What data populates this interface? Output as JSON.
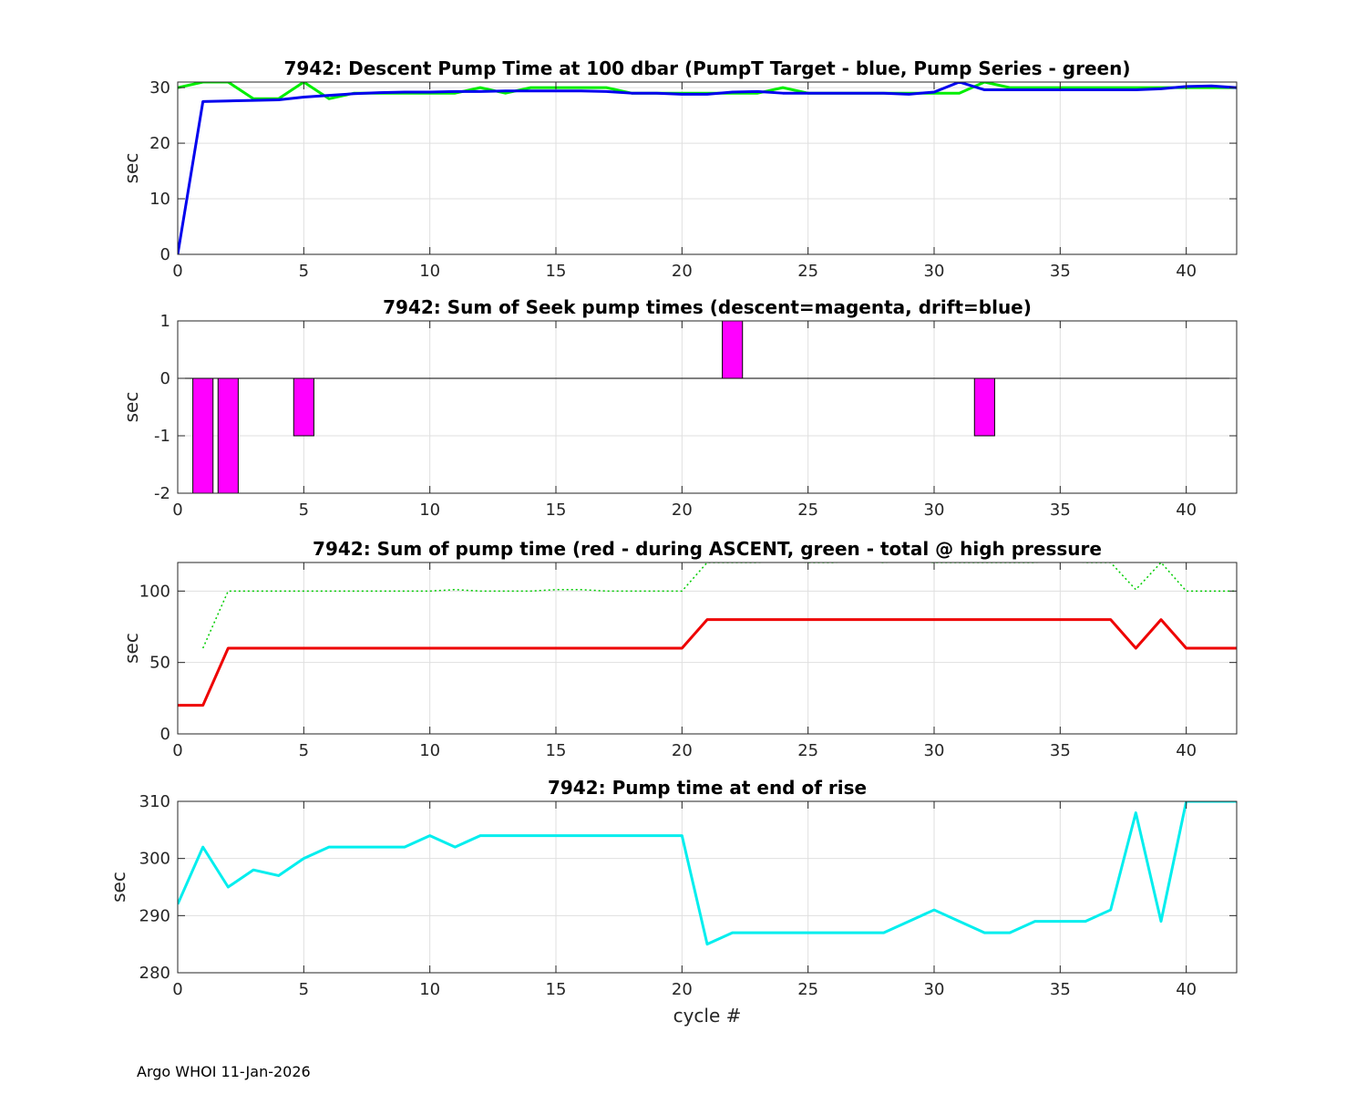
{
  "footer": "Argo WHOI 11-Jan-2026",
  "chart_data": [
    {
      "type": "line",
      "title": "7942: Descent Pump Time at 100 dbar (PumpT Target - blue, Pump Series - green)",
      "xlabel": "",
      "ylabel": "sec",
      "xlim": [
        0,
        42
      ],
      "ylim": [
        0,
        31
      ],
      "xticks": [
        0,
        5,
        10,
        15,
        20,
        25,
        30,
        35,
        40
      ],
      "yticks": [
        0,
        10,
        20,
        30
      ],
      "grid": true,
      "series": [
        {
          "color": "#00ee00",
          "width": 3,
          "dash": "",
          "x": [
            0,
            1,
            2,
            3,
            4,
            5,
            6,
            7,
            8,
            9,
            10,
            11,
            12,
            13,
            14,
            15,
            16,
            17,
            18,
            19,
            20,
            21,
            22,
            23,
            24,
            25,
            26,
            27,
            28,
            29,
            30,
            31,
            32,
            33,
            34,
            35,
            36,
            37,
            38,
            39,
            40,
            41,
            42
          ],
          "y": [
            30,
            31,
            31,
            28,
            28,
            31,
            28,
            29,
            29,
            29,
            29,
            29,
            30,
            29,
            30,
            30,
            30,
            30,
            29,
            29,
            29,
            29,
            29,
            29,
            30,
            29,
            29,
            29,
            29,
            29,
            29,
            29,
            31,
            30,
            30,
            30,
            30,
            30,
            30,
            30,
            30,
            30,
            30
          ]
        },
        {
          "color": "#0000ee",
          "width": 3,
          "dash": "",
          "x": [
            0,
            1,
            2,
            3,
            4,
            5,
            6,
            7,
            8,
            9,
            10,
            11,
            12,
            13,
            14,
            15,
            16,
            17,
            18,
            19,
            20,
            21,
            22,
            23,
            24,
            25,
            26,
            27,
            28,
            29,
            30,
            31,
            32,
            33,
            34,
            35,
            36,
            37,
            38,
            39,
            40,
            41,
            42
          ],
          "y": [
            0,
            27.5,
            27.6,
            27.7,
            27.8,
            28.3,
            28.6,
            28.9,
            29.1,
            29.2,
            29.2,
            29.3,
            29.3,
            29.4,
            29.4,
            29.4,
            29.4,
            29.3,
            29.0,
            29.0,
            28.8,
            28.8,
            29.2,
            29.3,
            29.0,
            29.0,
            29.0,
            29.0,
            29.0,
            28.8,
            29.2,
            31.0,
            29.6,
            29.6,
            29.6,
            29.6,
            29.6,
            29.6,
            29.6,
            29.8,
            30.2,
            30.3,
            30.0
          ]
        }
      ]
    },
    {
      "type": "bar",
      "title": "7942: Sum of Seek pump times (descent=magenta, drift=blue)",
      "xlabel": "",
      "ylabel": "sec",
      "xlim": [
        0,
        42
      ],
      "ylim": [
        -2,
        1
      ],
      "xticks": [
        0,
        5,
        10,
        15,
        20,
        25,
        30,
        35,
        40
      ],
      "yticks": [
        -2,
        -1,
        0,
        1
      ],
      "grid": true,
      "zero_line": true,
      "bars": [
        {
          "x": 1,
          "value": -2
        },
        {
          "x": 2,
          "value": -2
        },
        {
          "x": 5,
          "value": -1
        },
        {
          "x": 22,
          "value": 1
        },
        {
          "x": 32,
          "value": -1
        }
      ],
      "bar_width": 0.8,
      "bar_color": "#ff00ff"
    },
    {
      "type": "line",
      "title": "7942: Sum of pump time (red - during ASCENT, green - total @ high pressure",
      "xlabel": "",
      "ylabel": "sec",
      "xlim": [
        0,
        42
      ],
      "ylim": [
        0,
        120
      ],
      "xticks": [
        0,
        5,
        10,
        15,
        20,
        25,
        30,
        35,
        40
      ],
      "yticks": [
        0,
        50,
        100
      ],
      "grid": true,
      "series": [
        {
          "color": "#00cc00",
          "width": 1.5,
          "dash": "2,3",
          "x": [
            1,
            2,
            3,
            4,
            5,
            6,
            7,
            8,
            9,
            10,
            11,
            12,
            13,
            14,
            15,
            16,
            17,
            18,
            19,
            20,
            21,
            22,
            23,
            24,
            25,
            26,
            27,
            28,
            29,
            30,
            31,
            32,
            33,
            34,
            35,
            36,
            37,
            38,
            39,
            40,
            41,
            42
          ],
          "y": [
            60,
            100,
            100,
            100,
            100,
            100,
            100,
            100,
            100,
            100,
            101,
            100,
            100,
            100,
            101,
            101,
            100,
            100,
            100,
            100,
            120,
            120,
            120,
            121,
            120,
            120,
            121,
            120,
            121,
            120,
            120,
            120,
            120,
            120,
            121,
            120,
            120,
            101,
            120,
            100,
            100,
            100
          ]
        },
        {
          "color": "#ee0000",
          "width": 3,
          "dash": "",
          "x": [
            0,
            1,
            2,
            3,
            4,
            5,
            6,
            7,
            8,
            9,
            10,
            11,
            12,
            13,
            14,
            15,
            16,
            17,
            18,
            19,
            20,
            21,
            22,
            23,
            24,
            25,
            26,
            27,
            28,
            29,
            30,
            31,
            32,
            33,
            34,
            35,
            36,
            37,
            38,
            39,
            40,
            41,
            42
          ],
          "y": [
            20,
            20,
            60,
            60,
            60,
            60,
            60,
            60,
            60,
            60,
            60,
            60,
            60,
            60,
            60,
            60,
            60,
            60,
            60,
            60,
            60,
            80,
            80,
            80,
            80,
            80,
            80,
            80,
            80,
            80,
            80,
            80,
            80,
            80,
            80,
            80,
            80,
            80,
            60,
            80,
            60,
            60,
            60
          ]
        }
      ]
    },
    {
      "type": "line",
      "title": "7942: Pump time at end of rise",
      "xlabel": "cycle #",
      "ylabel": "sec",
      "xlim": [
        0,
        42
      ],
      "ylim": [
        280,
        310
      ],
      "xticks": [
        0,
        5,
        10,
        15,
        20,
        25,
        30,
        35,
        40
      ],
      "yticks": [
        280,
        290,
        300,
        310
      ],
      "grid": true,
      "series": [
        {
          "color": "#00eeee",
          "width": 3,
          "dash": "",
          "x": [
            0,
            1,
            2,
            3,
            4,
            5,
            6,
            7,
            8,
            9,
            10,
            11,
            12,
            13,
            14,
            15,
            16,
            17,
            18,
            19,
            20,
            21,
            22,
            23,
            24,
            25,
            26,
            27,
            28,
            29,
            30,
            31,
            32,
            33,
            34,
            35,
            36,
            37,
            38,
            39,
            40,
            41,
            42
          ],
          "y": [
            292,
            302,
            295,
            298,
            297,
            300,
            302,
            302,
            302,
            302,
            304,
            302,
            304,
            304,
            304,
            304,
            304,
            304,
            304,
            304,
            304,
            285,
            287,
            287,
            287,
            287,
            287,
            287,
            287,
            289,
            291,
            289,
            287,
            287,
            289,
            289,
            289,
            291,
            308,
            289,
            310,
            310,
            310
          ]
        }
      ]
    }
  ]
}
